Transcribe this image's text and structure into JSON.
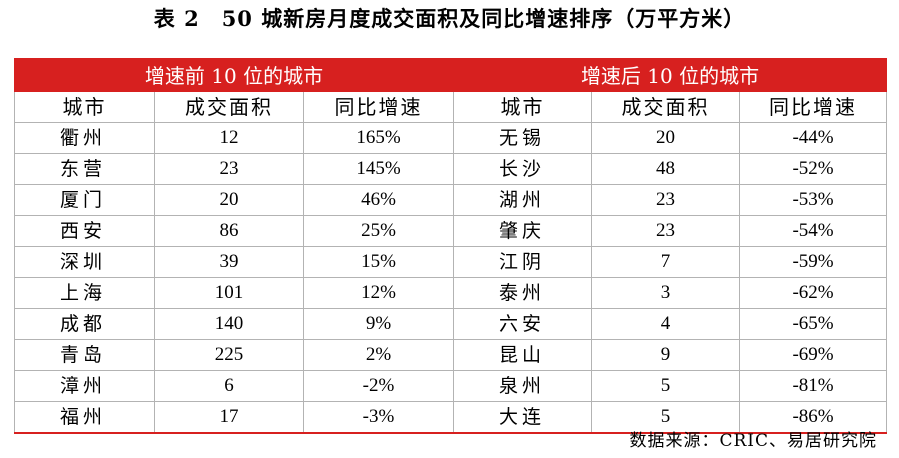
{
  "title": "表 2　50 城新房月度成交面积及同比增速排序（万平方米）",
  "groups": {
    "top": "增速前 10 位的城市",
    "bottom": "增速后 10 位的城市"
  },
  "headers": {
    "city": "城市",
    "area": "成交面积",
    "yoy": "同比增速"
  },
  "rows": [
    {
      "top_city": "衢州",
      "top_area": "12",
      "top_yoy": "165%",
      "bot_city": "无锡",
      "bot_area": "20",
      "bot_yoy": "-44%"
    },
    {
      "top_city": "东营",
      "top_area": "23",
      "top_yoy": "145%",
      "bot_city": "长沙",
      "bot_area": "48",
      "bot_yoy": "-52%"
    },
    {
      "top_city": "厦门",
      "top_area": "20",
      "top_yoy": "46%",
      "bot_city": "湖州",
      "bot_area": "23",
      "bot_yoy": "-53%"
    },
    {
      "top_city": "西安",
      "top_area": "86",
      "top_yoy": "25%",
      "bot_city": "肇庆",
      "bot_area": "23",
      "bot_yoy": "-54%"
    },
    {
      "top_city": "深圳",
      "top_area": "39",
      "top_yoy": "15%",
      "bot_city": "江阴",
      "bot_area": "7",
      "bot_yoy": "-59%"
    },
    {
      "top_city": "上海",
      "top_area": "101",
      "top_yoy": "12%",
      "bot_city": "泰州",
      "bot_area": "3",
      "bot_yoy": "-62%"
    },
    {
      "top_city": "成都",
      "top_area": "140",
      "top_yoy": "9%",
      "bot_city": "六安",
      "bot_area": "4",
      "bot_yoy": "-65%"
    },
    {
      "top_city": "青岛",
      "top_area": "225",
      "top_yoy": "2%",
      "bot_city": "昆山",
      "bot_area": "9",
      "bot_yoy": "-69%"
    },
    {
      "top_city": "漳州",
      "top_area": "6",
      "top_yoy": "-2%",
      "bot_city": "泉州",
      "bot_area": "5",
      "bot_yoy": "-81%"
    },
    {
      "top_city": "福州",
      "top_area": "17",
      "top_yoy": "-3%",
      "bot_city": "大连",
      "bot_area": "5",
      "bot_yoy": "-86%"
    }
  ],
  "source": "数据来源：CRIC、易居研究院",
  "colors": {
    "accent": "#d7201f",
    "border": "#b3b3b3"
  }
}
